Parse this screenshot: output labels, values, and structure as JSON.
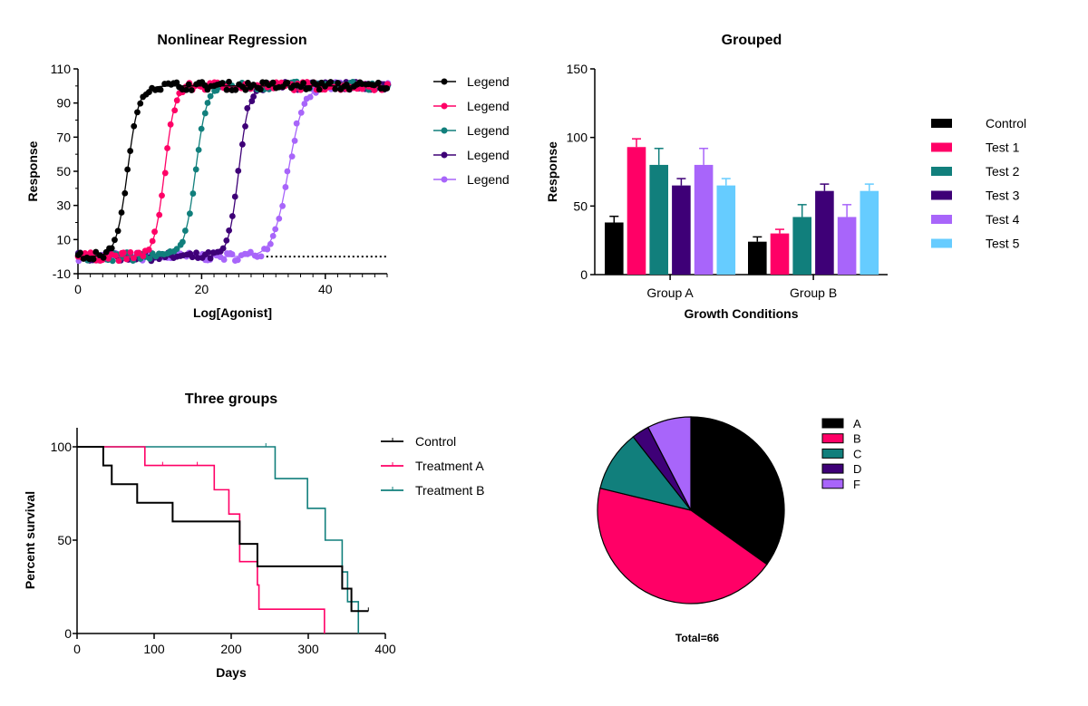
{
  "colors": {
    "black": "#000000",
    "pink": "#ff0066",
    "teal": "#117f7c",
    "darkpurple": "#3e0077",
    "lightpurple": "#a865fa",
    "lightblue": "#66ccff"
  },
  "chart_data": [
    {
      "type": "scatter",
      "title": "Nonlinear Regression",
      "xlabel": "Log[Agonist]",
      "ylabel": "Response",
      "xlim": [
        0,
        50
      ],
      "ylim": [
        -10,
        110
      ],
      "xticks": [
        "0",
        "20",
        "40"
      ],
      "yticks": [
        "-10",
        "10",
        "30",
        "50",
        "70",
        "90",
        "110"
      ],
      "legend_position": "right",
      "reference_line": {
        "y": 0,
        "x_from": 29,
        "x_to": 50,
        "style": "dotted"
      },
      "series": [
        {
          "name": "Legend",
          "color": "#000000",
          "bottom": 0,
          "top": 100,
          "ec50": 8,
          "hill_slope": 0.55
        },
        {
          "name": "Legend",
          "color": "#ff0066",
          "bottom": 0,
          "top": 100,
          "ec50": 14,
          "hill_slope": 0.6
        },
        {
          "name": "Legend",
          "color": "#117f7c",
          "bottom": 0,
          "top": 100,
          "ec50": 19,
          "hill_slope": 0.55
        },
        {
          "name": "Legend",
          "color": "#3e0077",
          "bottom": 0,
          "top": 100,
          "ec50": 26,
          "hill_slope": 0.6
        },
        {
          "name": "Legend",
          "color": "#a865fa",
          "bottom": 0,
          "top": 100,
          "ec50": 34,
          "hill_slope": 0.4
        }
      ]
    },
    {
      "type": "bar",
      "title": "Grouped",
      "xlabel": "Growth Conditions",
      "ylabel": "Response",
      "ylim": [
        0,
        150
      ],
      "yticks": [
        "0",
        "50",
        "100",
        "150"
      ],
      "categories": [
        "Group A",
        "Group B"
      ],
      "legend_position": "right",
      "series": [
        {
          "name": "Control",
          "color": "#000000",
          "values": [
            38,
            24
          ],
          "errors": [
            4.5,
            3.5
          ]
        },
        {
          "name": "Test 1",
          "color": "#ff0066",
          "values": [
            93,
            30
          ],
          "errors": [
            6,
            3
          ]
        },
        {
          "name": "Test 2",
          "color": "#117f7c",
          "values": [
            80,
            42
          ],
          "errors": [
            12,
            9
          ]
        },
        {
          "name": "Test 3",
          "color": "#3e0077",
          "values": [
            65,
            61
          ],
          "errors": [
            5,
            5
          ]
        },
        {
          "name": "Test 4",
          "color": "#a865fa",
          "values": [
            80,
            42
          ],
          "errors": [
            12,
            9
          ]
        },
        {
          "name": "Test 5",
          "color": "#66ccff",
          "values": [
            65,
            61
          ],
          "errors": [
            5,
            5
          ]
        }
      ]
    },
    {
      "type": "line",
      "subtype": "survival-step",
      "title": "Three groups",
      "xlabel": "Days",
      "ylabel": "Percent survival",
      "xlim": [
        0,
        400
      ],
      "ylim": [
        0,
        100
      ],
      "xticks": [
        "0",
        "100",
        "200",
        "300",
        "400"
      ],
      "yticks": [
        "0",
        "50",
        "100"
      ],
      "legend_position": "right",
      "series": [
        {
          "name": "Control",
          "color": "#000000",
          "steps": [
            [
              0,
              100
            ],
            [
              34,
              90
            ],
            [
              45,
              80
            ],
            [
              78,
              70
            ],
            [
              124,
              60
            ],
            [
              211,
              48
            ],
            [
              234,
              36
            ],
            [
              344,
              24
            ],
            [
              356,
              12
            ],
            [
              378,
              12
            ]
          ],
          "censored": [
            [
              378,
              12
            ]
          ]
        },
        {
          "name": "Treatment A",
          "color": "#ff0066",
          "steps": [
            [
              0,
              100
            ],
            [
              88,
              90
            ],
            [
              178,
              77
            ],
            [
              197,
              64
            ],
            [
              211,
              38.5
            ],
            [
              234,
              26
            ],
            [
              236,
              13
            ],
            [
              321,
              0
            ]
          ],
          "censored": [
            [
              111,
              90
            ],
            [
              156,
              90
            ]
          ]
        },
        {
          "name": "Treatment B",
          "color": "#117f7c",
          "steps": [
            [
              0,
              100
            ],
            [
              257,
              83
            ],
            [
              299,
              67
            ],
            [
              322,
              50
            ],
            [
              344,
              33
            ],
            [
              351,
              17
            ],
            [
              365,
              0
            ]
          ],
          "censored": [
            [
              245,
              100
            ]
          ]
        }
      ]
    },
    {
      "type": "pie",
      "caption": "Total=66",
      "legend_position": "top-right",
      "slices": [
        {
          "label": "A",
          "value": 23,
          "color": "#000000"
        },
        {
          "label": "B",
          "value": 29,
          "color": "#ff0066"
        },
        {
          "label": "C",
          "value": 7,
          "color": "#117f7c"
        },
        {
          "label": "D",
          "value": 2,
          "color": "#3e0077"
        },
        {
          "label": "F",
          "value": 5,
          "color": "#a865fa"
        }
      ]
    }
  ]
}
